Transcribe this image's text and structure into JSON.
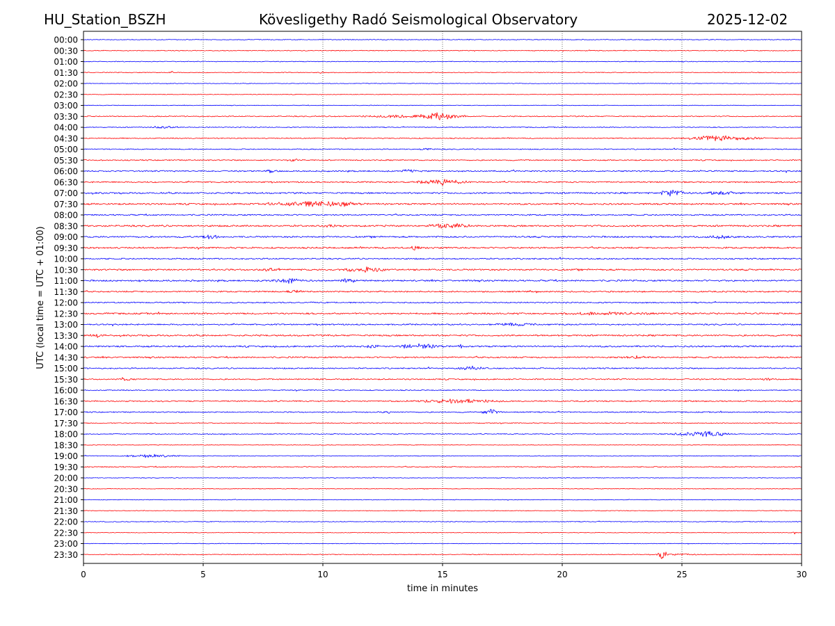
{
  "header": {
    "station": "HU_Station_BSZH",
    "observatory": "Kövesligethy Radó Seismological Observatory",
    "date": "2025-12-02"
  },
  "chart_data": {
    "type": "line",
    "title": "Kövesligethy Radó Seismological Observatory",
    "xlabel": "time in minutes",
    "ylabel": "UTC (local time = UTC + 01:00)",
    "xlim": [
      0,
      30
    ],
    "xticks": [
      "0",
      "5",
      "10",
      "15",
      "20",
      "25",
      "30"
    ],
    "xtick_values": [
      0,
      5,
      10,
      15,
      20,
      25,
      30
    ],
    "grid": "vertical dotted at x ticks",
    "row_labels": [
      "00:00",
      "00:30",
      "01:00",
      "01:30",
      "02:00",
      "02:30",
      "03:00",
      "03:30",
      "04:00",
      "04:30",
      "05:00",
      "05:30",
      "06:00",
      "06:30",
      "07:00",
      "07:30",
      "08:00",
      "08:30",
      "09:00",
      "09:30",
      "10:00",
      "10:30",
      "11:00",
      "11:30",
      "12:00",
      "12:30",
      "13:00",
      "13:30",
      "14:00",
      "14:30",
      "15:00",
      "15:30",
      "16:00",
      "16:30",
      "17:00",
      "17:30",
      "18:00",
      "18:30",
      "19:00",
      "19:30",
      "20:00",
      "20:30",
      "21:00",
      "21:30",
      "22:00",
      "22:30",
      "23:00",
      "23:30"
    ],
    "colors": {
      "even": "#0000ff",
      "odd": "#ff0000"
    },
    "noise_level": [
      0.6,
      0.6,
      0.6,
      0.6,
      0.5,
      0.5,
      0.5,
      0.8,
      0.7,
      0.8,
      0.8,
      0.9,
      1.1,
      1.1,
      1.3,
      1.3,
      1.1,
      1.4,
      1.3,
      1.3,
      1.1,
      1.3,
      1.3,
      1.1,
      1.0,
      1.3,
      1.1,
      1.3,
      1.3,
      1.2,
      1.0,
      1.0,
      0.8,
      1.0,
      0.9,
      0.7,
      0.7,
      0.5,
      0.6,
      0.8,
      0.5,
      0.5,
      0.5,
      0.5,
      0.6,
      0.5,
      0.5,
      0.6
    ],
    "events": [
      {
        "row": 1,
        "t": 6.8,
        "amp": 2,
        "dur": 0.1
      },
      {
        "row": 3,
        "t": 3.7,
        "amp": 3,
        "dur": 0.15
      },
      {
        "row": 3,
        "t": 9.9,
        "amp": 2,
        "dur": 0.1
      },
      {
        "row": 7,
        "t": 14.8,
        "amp": 7,
        "dur": 1.5
      },
      {
        "row": 7,
        "t": 13.0,
        "amp": 3,
        "dur": 2.5
      },
      {
        "row": 8,
        "t": 3.3,
        "amp": 3,
        "dur": 0.8
      },
      {
        "row": 9,
        "t": 26.5,
        "amp": 5,
        "dur": 2.5
      },
      {
        "row": 10,
        "t": 14.3,
        "amp": 3,
        "dur": 0.4
      },
      {
        "row": 11,
        "t": 8.8,
        "amp": 3,
        "dur": 0.6
      },
      {
        "row": 12,
        "t": 7.8,
        "amp": 4,
        "dur": 0.4
      },
      {
        "row": 12,
        "t": 13.6,
        "amp": 5,
        "dur": 0.4
      },
      {
        "row": 13,
        "t": 15.0,
        "amp": 6,
        "dur": 1.5
      },
      {
        "row": 14,
        "t": 24.6,
        "amp": 7,
        "dur": 0.8
      },
      {
        "row": 14,
        "t": 26.6,
        "amp": 4,
        "dur": 1.2
      },
      {
        "row": 15,
        "t": 9.5,
        "amp": 6,
        "dur": 3
      },
      {
        "row": 15,
        "t": 11.0,
        "amp": 7,
        "dur": 0.5
      },
      {
        "row": 17,
        "t": 15.3,
        "amp": 5,
        "dur": 1.5
      },
      {
        "row": 17,
        "t": 10.3,
        "amp": 4,
        "dur": 0.4
      },
      {
        "row": 18,
        "t": 5.3,
        "amp": 4,
        "dur": 0.8
      },
      {
        "row": 18,
        "t": 26.5,
        "amp": 4,
        "dur": 1.2
      },
      {
        "row": 19,
        "t": 13.9,
        "amp": 4,
        "dur": 0.8
      },
      {
        "row": 21,
        "t": 11.8,
        "amp": 5,
        "dur": 1.5
      },
      {
        "row": 21,
        "t": 7.7,
        "amp": 4,
        "dur": 0.5
      },
      {
        "row": 22,
        "t": 8.5,
        "amp": 5,
        "dur": 1
      },
      {
        "row": 22,
        "t": 11.0,
        "amp": 5,
        "dur": 0.6
      },
      {
        "row": 23,
        "t": 8.8,
        "amp": 3,
        "dur": 0.8
      },
      {
        "row": 25,
        "t": 22.0,
        "amp": 3,
        "dur": 4
      },
      {
        "row": 26,
        "t": 18.0,
        "amp": 3,
        "dur": 2
      },
      {
        "row": 27,
        "t": 0.6,
        "amp": 4,
        "dur": 0.6
      },
      {
        "row": 28,
        "t": 12.1,
        "amp": 5,
        "dur": 0.4
      },
      {
        "row": 28,
        "t": 14.0,
        "amp": 5,
        "dur": 1.5
      },
      {
        "row": 28,
        "t": 15.8,
        "amp": 5,
        "dur": 0.3
      },
      {
        "row": 29,
        "t": 23.0,
        "amp": 3,
        "dur": 1
      },
      {
        "row": 30,
        "t": 16.3,
        "amp": 4,
        "dur": 1
      },
      {
        "row": 31,
        "t": 1.7,
        "amp": 4,
        "dur": 0.3
      },
      {
        "row": 31,
        "t": 28.6,
        "amp": 3,
        "dur": 0.5
      },
      {
        "row": 33,
        "t": 15.8,
        "amp": 4,
        "dur": 3
      },
      {
        "row": 33,
        "t": 25.3,
        "amp": 3,
        "dur": 0.3
      },
      {
        "row": 34,
        "t": 12.6,
        "amp": 5,
        "dur": 0.3
      },
      {
        "row": 34,
        "t": 17.0,
        "amp": 5,
        "dur": 0.6
      },
      {
        "row": 36,
        "t": 25.8,
        "amp": 6,
        "dur": 1.6
      },
      {
        "row": 38,
        "t": 2.8,
        "amp": 3,
        "dur": 1.8
      },
      {
        "row": 45,
        "t": 29.7,
        "amp": 3,
        "dur": 0.2
      },
      {
        "row": 47,
        "t": 24.2,
        "amp": 11,
        "dur": 0.3
      },
      {
        "row": 47,
        "t": 25.0,
        "amp": 2,
        "dur": 1.5
      }
    ]
  }
}
